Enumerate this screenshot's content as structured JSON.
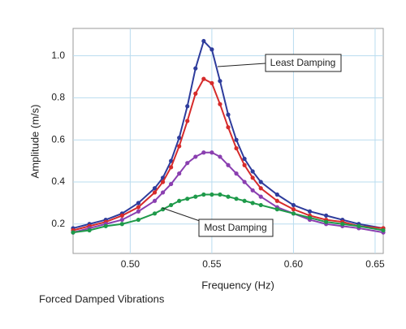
{
  "chart_data": {
    "type": "line",
    "x_label": "Frequency (Hz)",
    "y_label": "Amplitude (m/s)",
    "caption": "Forced Damped Vibrations",
    "annotations": [
      "Least Damping",
      "Most Damping"
    ],
    "x": [
      0.465,
      0.475,
      0.485,
      0.495,
      0.505,
      0.515,
      0.52,
      0.525,
      0.53,
      0.535,
      0.54,
      0.545,
      0.55,
      0.555,
      0.56,
      0.565,
      0.57,
      0.575,
      0.58,
      0.59,
      0.6,
      0.61,
      0.62,
      0.63,
      0.64,
      0.655
    ],
    "series": [
      {
        "color": "#2e3c9c",
        "values": [
          0.18,
          0.2,
          0.22,
          0.25,
          0.3,
          0.37,
          0.42,
          0.5,
          0.61,
          0.76,
          0.94,
          1.07,
          1.03,
          0.88,
          0.72,
          0.6,
          0.51,
          0.45,
          0.4,
          0.34,
          0.29,
          0.26,
          0.24,
          0.22,
          0.2,
          0.18
        ]
      },
      {
        "color": "#d62b2b",
        "values": [
          0.17,
          0.19,
          0.21,
          0.24,
          0.28,
          0.35,
          0.4,
          0.47,
          0.57,
          0.69,
          0.82,
          0.89,
          0.87,
          0.77,
          0.66,
          0.56,
          0.48,
          0.42,
          0.37,
          0.31,
          0.27,
          0.24,
          0.22,
          0.21,
          0.19,
          0.18
        ]
      },
      {
        "color": "#8a3fb0",
        "values": [
          0.16,
          0.18,
          0.2,
          0.22,
          0.26,
          0.31,
          0.35,
          0.39,
          0.44,
          0.49,
          0.52,
          0.54,
          0.54,
          0.52,
          0.48,
          0.44,
          0.4,
          0.36,
          0.33,
          0.28,
          0.25,
          0.22,
          0.2,
          0.19,
          0.18,
          0.16
        ]
      },
      {
        "color": "#1e9a4a",
        "values": [
          0.16,
          0.17,
          0.19,
          0.2,
          0.22,
          0.25,
          0.27,
          0.29,
          0.31,
          0.32,
          0.33,
          0.34,
          0.34,
          0.34,
          0.33,
          0.32,
          0.31,
          0.3,
          0.29,
          0.27,
          0.25,
          0.23,
          0.21,
          0.2,
          0.19,
          0.17
        ]
      }
    ],
    "xlim": [
      0.465,
      0.655
    ],
    "ylim": [
      0.06,
      1.13
    ],
    "xticks": [
      {
        "value": 0.5,
        "label": "0.50"
      },
      0.55,
      {
        "value": 0.6,
        "label": "0.60"
      },
      0.65
    ],
    "yticks": [
      0.2,
      0.4,
      0.6,
      0.8,
      {
        "value": 1,
        "label": "1.0"
      }
    ],
    "grid": true
  }
}
